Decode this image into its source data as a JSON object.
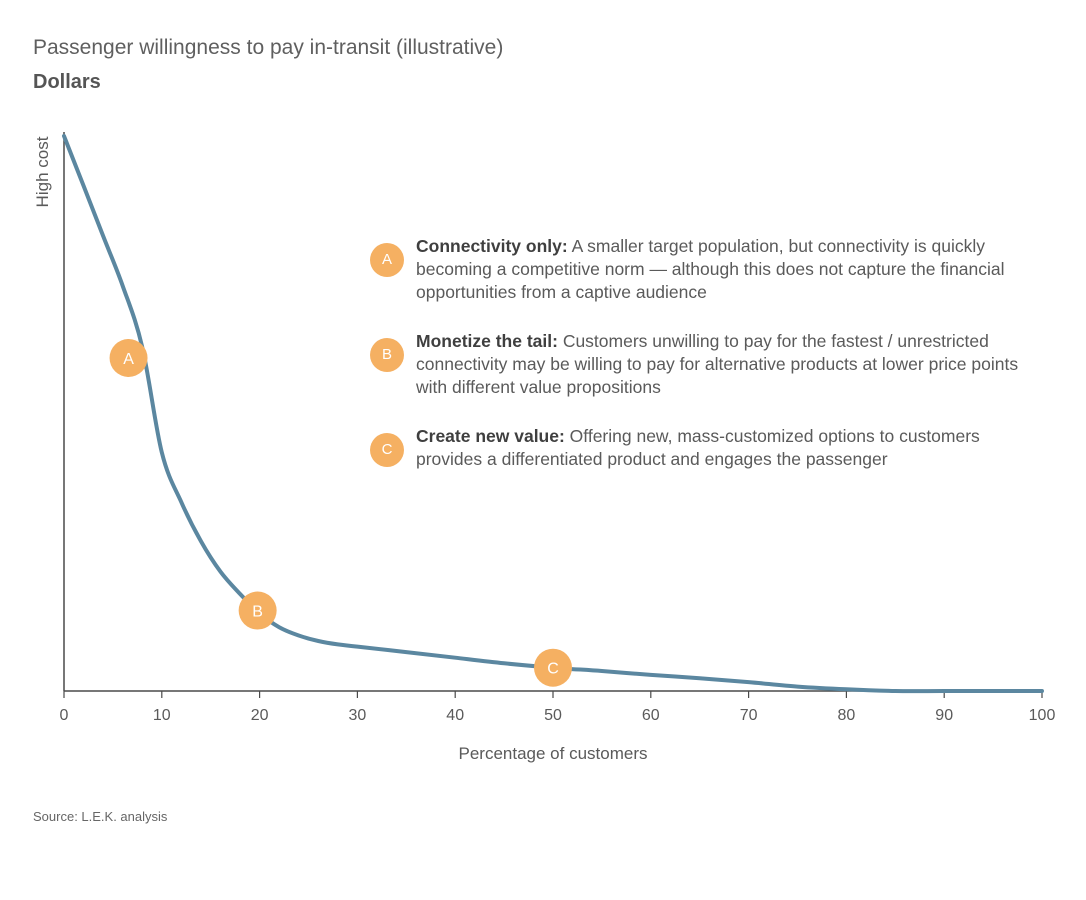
{
  "header": {
    "title": "Passenger willingness to pay in-transit (illustrative)",
    "subtitle": "Dollars"
  },
  "chart_data": {
    "type": "line",
    "xlabel": "Percentage of customers",
    "ylabel": "High cost",
    "xlim": [
      0,
      100
    ],
    "x_ticks": [
      "0",
      "10",
      "20",
      "30",
      "40",
      "50",
      "60",
      "70",
      "80",
      "90",
      "100"
    ],
    "series": [
      {
        "color": "#5b87a0",
        "x": [
          0,
          2,
          4,
          6,
          8,
          10,
          12,
          14,
          16,
          18,
          20,
          22,
          24,
          26,
          28,
          30,
          35,
          40,
          45,
          50,
          55,
          60,
          65,
          70,
          75,
          80,
          85,
          90,
          95,
          100
        ],
        "y": [
          100,
          91,
          82,
          73,
          62,
          43,
          34,
          27,
          21.5,
          17.5,
          14,
          11.5,
          10,
          9,
          8.4,
          8,
          7,
          6,
          5,
          4.2,
          3.6,
          2.9,
          2.3,
          1.6,
          0.8,
          0.3,
          0,
          0,
          0,
          0
        ]
      }
    ],
    "markers": [
      {
        "label": "A",
        "x": 6.6,
        "y": 60
      },
      {
        "label": "B",
        "x": 19.8,
        "y": 14.5
      },
      {
        "label": "C",
        "x": 50,
        "y": 4.2
      }
    ],
    "line_color": "#5b87a0",
    "marker_color": "#f5b062"
  },
  "legend": [
    {
      "badge": "A",
      "heading": "Connectivity only:",
      "text": " A smaller target population, but connectivity is quickly becoming a competitive norm — although this does not capture the financial opportunities from a captive audience"
    },
    {
      "badge": "B",
      "heading": "Monetize the tail:",
      "text": " Customers unwilling to pay for the fastest / unrestricted connectivity may be willing to pay for alternative products at lower price points with different value propositions"
    },
    {
      "badge": "C",
      "heading": "Create new value:",
      "text": " Offering new, mass-customized options to customers provides a differentiated product and engages the passenger"
    }
  ],
  "footer": {
    "source": "Source: L.E.K. analysis"
  }
}
